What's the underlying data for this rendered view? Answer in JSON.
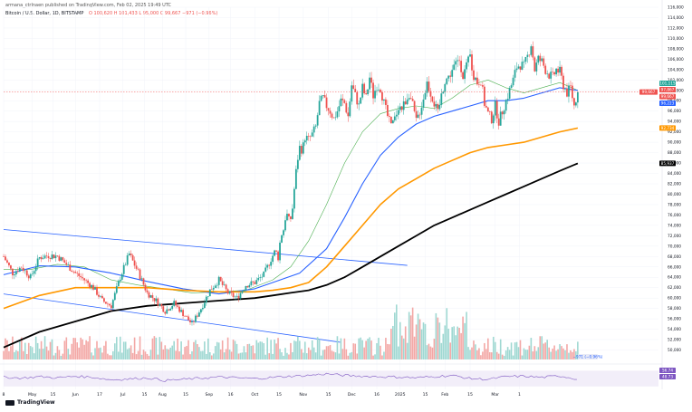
{
  "header": {
    "line1": "Bitcoin / U.S. Dollar, 1D, BITSTAMP",
    "prefix": "armana_ctrlnaen published on TradingView.com, Feb 02, 2025 19:49 UTC",
    "open": "O 100,620",
    "high": "H 101,433",
    "low": "L 95,000",
    "close": "C 99,667",
    "change": "−971 (−0.96%)"
  },
  "footer": {
    "logo_text": "TradingView"
  },
  "colors": {
    "up": "#26a69a",
    "down": "#ef5350",
    "ema20": "#4caf50",
    "ema50": "#2962ff",
    "ema100": "#ff9800",
    "ema200": "#000000",
    "channel": "#2962ff",
    "rsi": "#7e57c2"
  },
  "chart_data": {
    "type": "line",
    "title": "Bitcoin / U.S. Dollar, 1D, BITSTAMP",
    "xlabel": "",
    "ylabel": "",
    "ylim": [
      48000,
      116000
    ],
    "x_ticks": [
      "8",
      "May",
      "15",
      "Jun",
      "17",
      "Jul",
      "15",
      "Aug",
      "15",
      "Sep",
      "16",
      "Oct",
      "15",
      "Nov",
      "15",
      "Dec",
      "16",
      "2025",
      "15",
      "Feb",
      "15",
      "Mar",
      "1"
    ],
    "y_ticks": [
      116000,
      114000,
      112000,
      110000,
      108000,
      106000,
      104000,
      102000,
      100000,
      98000,
      96000,
      94000,
      92000,
      90000,
      88000,
      86000,
      84000,
      82000,
      80000,
      78000,
      76000,
      74000,
      72000,
      70000,
      68000,
      66000,
      64000,
      62000,
      60000,
      58000,
      56000,
      54000,
      52000,
      50000
    ],
    "series": [
      {
        "name": "",
        "x": [
          0,
          10,
          20,
          30,
          40,
          50,
          60,
          70,
          80,
          90,
          100,
          110,
          120,
          130,
          140,
          150,
          160,
          170,
          180,
          190,
          200,
          210,
          220,
          230,
          240,
          250,
          260,
          270,
          280,
          290,
          298
        ],
        "values": [
          68000,
          64800,
          66000,
          64000,
          67800,
          68200,
          68100,
          66500,
          64800,
          63500,
          62000,
          59500,
          58500,
          64000,
          68500,
          65000,
          61000,
          59500,
          57500,
          59000,
          57000,
          55000,
          58000,
          61500,
          63500,
          61000,
          60000,
          62500,
          63000,
          64500,
          67500
        ]
      },
      {
        "name": "",
        "x": [
          298,
          303,
          306,
          309,
          312,
          315,
          318,
          321,
          324,
          327,
          330,
          333,
          336,
          340,
          344,
          348,
          352,
          356,
          360,
          364,
          368,
          372,
          376,
          380,
          384,
          388,
          392,
          396,
          400,
          404,
          408,
          412,
          416,
          420,
          424,
          428,
          432,
          436,
          440,
          444,
          448,
          452,
          456,
          460,
          464,
          468,
          472,
          476,
          480,
          484,
          488,
          492,
          496,
          500,
          504,
          508,
          512,
          516,
          520,
          524,
          528,
          532,
          536,
          540,
          544,
          548,
          552,
          556,
          560,
          564,
          568,
          572,
          576,
          580,
          584,
          588,
          592,
          596,
          600,
          604,
          608,
          612,
          616,
          620,
          624,
          628,
          632,
          636,
          640
        ],
        "values": [
          67500,
          69200,
          67800,
          72000,
          73200,
          76500,
          75000,
          75500,
          81000,
          86000,
          89000,
          88500,
          91000,
          90500,
          91500,
          93000,
          97500,
          98500,
          97000,
          96000,
          94500,
          96000,
          98000,
          97500,
          95000,
          101000,
          99000,
          97000,
          100500,
          98500,
          102500,
          99000,
          101000,
          100500,
          97500,
          95000,
          93000,
          94500,
          97000,
          96500,
          98000,
          99500,
          97000,
          94000,
          96000,
          98500,
          101500,
          99500,
          97500,
          95500,
          99000,
          102000,
          102500,
          104000,
          105000,
          106000,
          103000,
          104500,
          106500,
          103000,
          101500,
          102000,
          97500,
          95500,
          94500,
          97000,
          94000,
          96000,
          98000,
          100000,
          102000,
          104500,
          105000,
          104500,
          106500,
          109000,
          104000,
          106000,
          105500,
          104000,
          103000,
          102500,
          104000,
          103500,
          101000,
          99500,
          100500,
          97000,
          99667
        ]
      },
      {
        "name": "",
        "x": [
          0,
          30,
          60,
          90,
          120,
          150,
          180,
          210,
          240,
          270,
          300,
          320,
          340,
          360,
          380,
          400,
          420,
          440,
          460,
          480,
          500,
          520,
          540,
          560,
          580,
          600,
          620,
          640
        ],
        "values": [
          65500,
          65500,
          66500,
          66000,
          63500,
          62500,
          61800,
          61000,
          61200,
          61500,
          63500,
          66000,
          71000,
          78000,
          86000,
          92000,
          95500,
          96500,
          97000,
          96500,
          98500,
          101000,
          102000,
          100500,
          99500,
          100500,
          101500,
          100000
        ]
      },
      {
        "name": "",
        "x": [
          0,
          40,
          80,
          120,
          160,
          200,
          240,
          280,
          300,
          330,
          360,
          380,
          400,
          420,
          440,
          460,
          480,
          500,
          520,
          540,
          560,
          580,
          600,
          620,
          640
        ],
        "values": [
          64500,
          66200,
          66000,
          64800,
          63200,
          61800,
          60800,
          61800,
          63000,
          64800,
          69500,
          75500,
          82000,
          87500,
          91000,
          93500,
          95000,
          96000,
          97000,
          98000,
          98000,
          98500,
          99500,
          100500,
          100000
        ]
      },
      {
        "name": "",
        "x": [
          0,
          40,
          80,
          120,
          160,
          200,
          240,
          280,
          300,
          320,
          340,
          360,
          380,
          400,
          420,
          440,
          460,
          480,
          500,
          520,
          540,
          560,
          580,
          600,
          620,
          640
        ],
        "values": [
          58000,
          60500,
          62000,
          62000,
          62000,
          61500,
          61200,
          61200,
          61500,
          62000,
          63000,
          66000,
          70000,
          74000,
          78000,
          81000,
          83000,
          85000,
          86500,
          88000,
          89000,
          89500,
          90000,
          91000,
          92000,
          92734
        ]
      },
      {
        "name": "",
        "x": [
          0,
          40,
          80,
          120,
          160,
          200,
          240,
          280,
          300,
          320,
          340,
          360,
          380,
          400,
          420,
          440,
          460,
          480,
          500,
          520,
          540,
          560,
          580,
          600,
          620,
          640
        ],
        "values": [
          50500,
          53500,
          55500,
          57500,
          58500,
          59000,
          59500,
          60000,
          60500,
          61000,
          61500,
          62500,
          64000,
          66000,
          68000,
          70000,
          72000,
          74000,
          75500,
          77000,
          78500,
          80000,
          81500,
          83000,
          84500,
          85937
        ]
      }
    ],
    "annotations": [
      "101,115",
      "97,867",
      "99,667",
      "96,223",
      "92,734",
      "85,937",
      "−971 (−0.96%)",
      "56.74",
      "48.73"
    ],
    "rsi": {
      "x": [
        0,
        20,
        40,
        60,
        80,
        100,
        120,
        140,
        160,
        180,
        200,
        220,
        240,
        260,
        280,
        300,
        320,
        340,
        360,
        380,
        400,
        420,
        440,
        460,
        480,
        500,
        520,
        540,
        560,
        580,
        600,
        620,
        640
      ],
      "values": [
        54,
        51,
        55,
        52,
        56,
        53,
        47,
        49,
        52,
        45,
        48,
        51,
        54,
        52,
        50,
        53,
        56,
        58,
        62,
        58,
        56,
        55,
        54,
        52,
        55,
        58,
        50,
        48,
        55,
        56,
        53,
        57,
        48.73
      ]
    }
  }
}
